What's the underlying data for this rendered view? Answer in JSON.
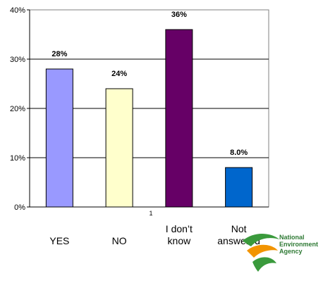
{
  "chart_data": {
    "type": "bar",
    "categories": [
      "YES",
      "NO",
      "I don’t\nknow",
      "Not\nanswered"
    ],
    "values": [
      28,
      24,
      36,
      8
    ],
    "data_labels": [
      "28%",
      "24%",
      "36%",
      "8.0%"
    ],
    "colors": [
      "#9999ff",
      "#ffffcc",
      "#660066",
      "#0066cc"
    ],
    "ylim": [
      0,
      40
    ],
    "yticks": [
      0,
      10,
      20,
      30,
      40
    ],
    "ytick_labels": [
      "0%",
      "10%",
      "20%",
      "30%",
      "40%"
    ],
    "x_axis_stray_label": "1",
    "grid": true,
    "legend": "none"
  },
  "logo": {
    "lines": [
      "National",
      "Environment",
      "Agency"
    ],
    "colors": {
      "green": "#3a9a3c",
      "orange": "#f29400"
    }
  }
}
